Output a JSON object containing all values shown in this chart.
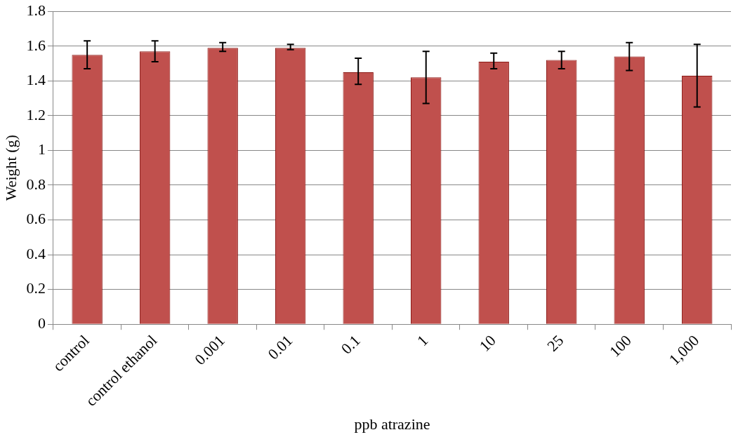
{
  "chart_data": {
    "type": "bar",
    "xlabel": "ppb atrazine",
    "ylabel": "Weight (g)",
    "categories": [
      "control",
      "control ethanol",
      "0.001",
      "0.01",
      "0.1",
      "1",
      "10",
      "25",
      "100",
      "1,000"
    ],
    "values": [
      1.55,
      1.57,
      1.59,
      1.59,
      1.45,
      1.42,
      1.51,
      1.52,
      1.54,
      1.43
    ],
    "errors": [
      [
        1.47,
        1.63
      ],
      [
        1.51,
        1.63
      ],
      [
        1.57,
        1.62
      ],
      [
        1.58,
        1.61
      ],
      [
        1.38,
        1.53
      ],
      [
        1.27,
        1.57
      ],
      [
        1.47,
        1.56
      ],
      [
        1.47,
        1.57
      ],
      [
        1.46,
        1.62
      ],
      [
        1.25,
        1.61
      ]
    ],
    "color": "#c0504d",
    "ylim": [
      0,
      1.8
    ],
    "yticks": [
      0,
      0.2,
      0.4,
      0.6,
      0.8,
      1,
      1.2,
      1.4,
      1.6,
      1.8
    ],
    "grid": "y",
    "legend": false
  }
}
